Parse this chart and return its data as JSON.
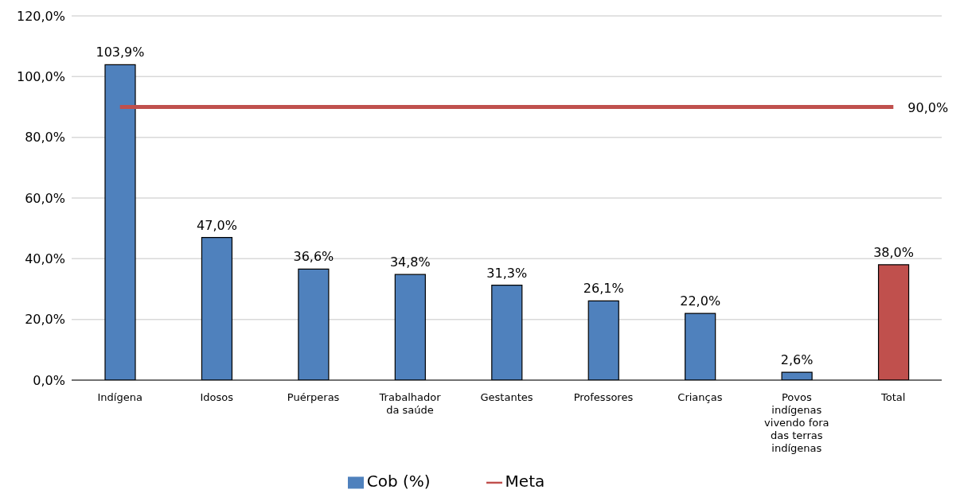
{
  "chart_data": {
    "type": "bar",
    "categories": [
      "Indígena",
      "Idosos",
      "Puérperas",
      "Trabalhador da saúde",
      "Gestantes",
      "Professores",
      "Crianças",
      "Povos indígenas vivendo fora das terras indígenas",
      "Total"
    ],
    "series": [
      {
        "name": "Cob (%)",
        "colors": [
          "#4f81bd",
          "#4f81bd",
          "#4f81bd",
          "#4f81bd",
          "#4f81bd",
          "#4f81bd",
          "#4f81bd",
          "#4f81bd",
          "#c0504d"
        ],
        "color": "#4f81bd",
        "values": [
          103.9,
          47.0,
          36.6,
          34.8,
          31.3,
          26.1,
          22.0,
          2.6,
          38.0
        ],
        "value_labels": [
          "103,9%",
          "47,0%",
          "36,6%",
          "34,8%",
          "31,3%",
          "26,1%",
          "22,0%",
          "2,6%",
          "38,0%"
        ]
      },
      {
        "name": "Meta",
        "type": "line",
        "color": "#c0504d",
        "values": [
          90,
          90,
          90,
          90,
          90,
          90,
          90,
          90,
          90
        ],
        "value_labels": [
          null,
          null,
          null,
          null,
          null,
          null,
          null,
          null,
          "90,0%"
        ]
      }
    ],
    "ylim": [
      0,
      120
    ],
    "yticks": [
      {
        "value": 0,
        "label": "0,0%"
      },
      {
        "value": 20,
        "label": "20,0%"
      },
      {
        "value": 40,
        "label": "40,0%"
      },
      {
        "value": 60,
        "label": "60,0%"
      },
      {
        "value": 80,
        "label": "80,0%"
      },
      {
        "value": 100,
        "label": "100,0%"
      },
      {
        "value": 120,
        "label": "120,0%"
      }
    ],
    "grid": "y",
    "legend": "bottom",
    "marker": "none",
    "line_style": "solid"
  }
}
